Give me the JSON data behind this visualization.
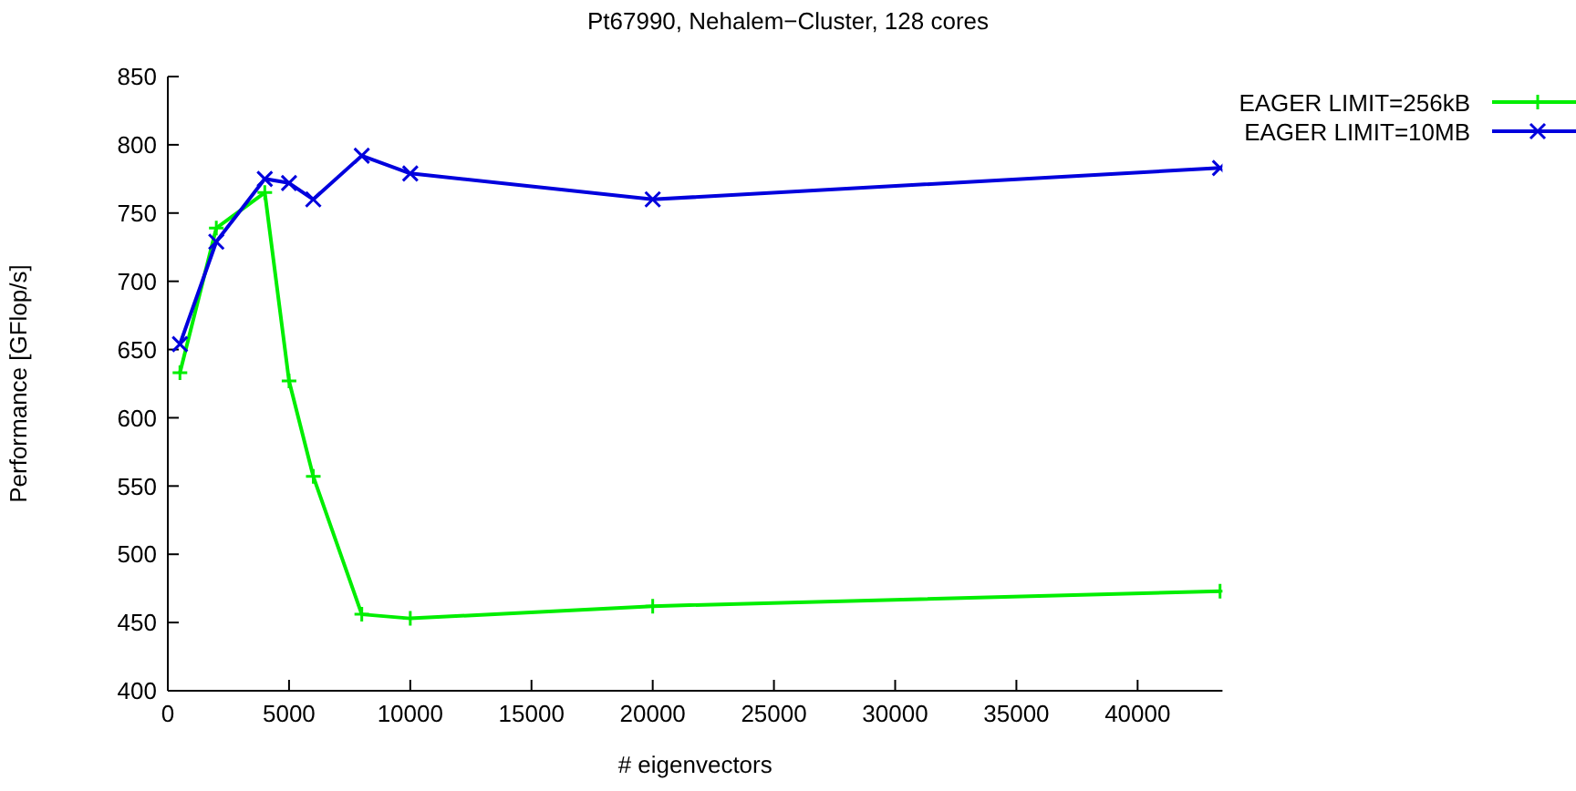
{
  "chart_data": {
    "type": "line",
    "title": "Pt67990, Nehalem−Cluster, 128 cores",
    "xlabel": "# eigenvectors",
    "ylabel": "Performance [GFlop/s]",
    "x": [
      500,
      2000,
      4000,
      5000,
      6000,
      8000,
      10000,
      20000,
      43400
    ],
    "series": [
      {
        "name": "EAGER LIMIT=256kB",
        "color": "#00ee00",
        "marker": "cross",
        "values": [
          633,
          739,
          765,
          627,
          557,
          456,
          453,
          462,
          473
        ]
      },
      {
        "name": "EAGER LIMIT=10MB",
        "color": "#0000dd",
        "marker": "x",
        "values": [
          654,
          729,
          775,
          772,
          760,
          792,
          779,
          760,
          783
        ]
      }
    ],
    "xlim": [
      0,
      43500
    ],
    "xticks": [
      0,
      5000,
      10000,
      15000,
      20000,
      25000,
      30000,
      35000,
      40000
    ],
    "ylim": [
      400,
      850
    ],
    "yticks": [
      400,
      450,
      500,
      550,
      600,
      650,
      700,
      750,
      800,
      850
    ],
    "grid": false,
    "legend": "top right",
    "line_style": "solid"
  }
}
